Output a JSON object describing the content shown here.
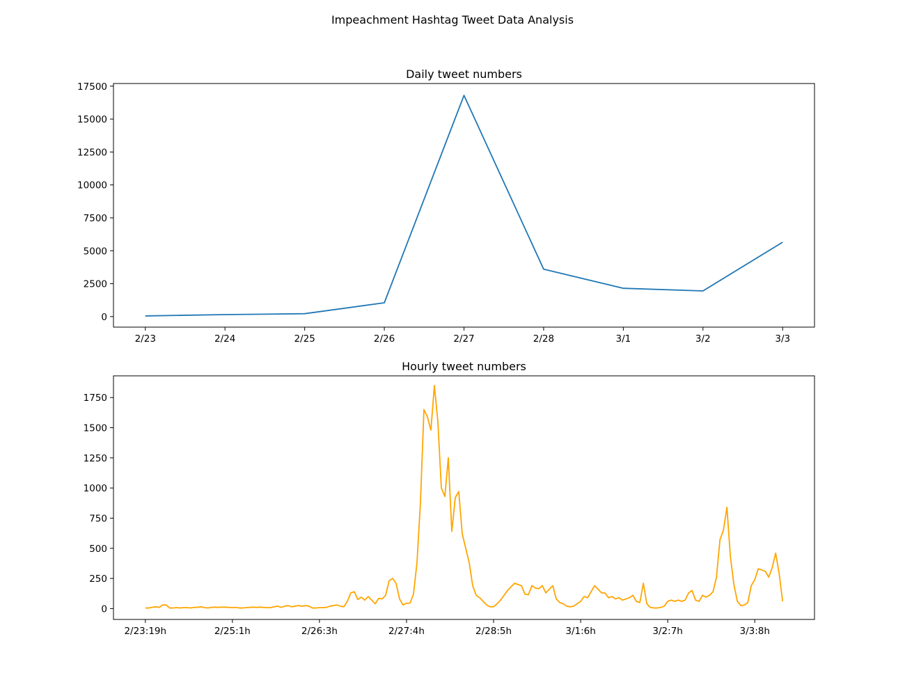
{
  "figure_title": "Impeachment Hashtag Tweet Data Analysis",
  "colors": {
    "daily": "#1f77b4",
    "hourly": "#ffa500"
  },
  "chart_data": [
    {
      "type": "line",
      "title": "Daily tweet numbers",
      "xlabel": "",
      "ylabel": "",
      "categories": [
        "2/23",
        "2/24",
        "2/25",
        "2/26",
        "2/27",
        "2/28",
        "3/1",
        "3/2",
        "3/3"
      ],
      "series": [
        {
          "values": [
            50,
            150,
            220,
            1050,
            16800,
            3600,
            2150,
            1950,
            5650
          ]
        }
      ],
      "ylim": [
        -800,
        17700
      ],
      "yticks": [
        0,
        2500,
        5000,
        7500,
        10000,
        12500,
        15000,
        17500
      ],
      "grid": false
    },
    {
      "type": "line",
      "title": "Hourly tweet numbers",
      "xlabel": "",
      "ylabel": "",
      "xtick_labels": [
        "2/23:19h",
        "2/25:1h",
        "2/26:3h",
        "2/27:4h",
        "2/28:5h",
        "3/1:6h",
        "3/2:7h",
        "3/3:8h"
      ],
      "xtick_index": [
        0,
        25,
        50,
        75,
        100,
        125,
        150,
        175
      ],
      "series": [
        {
          "values": [
            5,
            5,
            10,
            15,
            10,
            30,
            30,
            5,
            5,
            8,
            5,
            8,
            8,
            5,
            10,
            10,
            15,
            8,
            5,
            10,
            12,
            10,
            12,
            12,
            10,
            8,
            10,
            5,
            5,
            8,
            10,
            12,
            10,
            12,
            10,
            8,
            8,
            15,
            20,
            10,
            20,
            25,
            15,
            20,
            25,
            20,
            25,
            20,
            5,
            5,
            8,
            8,
            10,
            20,
            25,
            30,
            20,
            15,
            60,
            130,
            140,
            75,
            95,
            70,
            100,
            70,
            40,
            85,
            80,
            110,
            230,
            250,
            210,
            80,
            30,
            45,
            45,
            120,
            380,
            880,
            1650,
            1590,
            1480,
            1850,
            1550,
            1000,
            930,
            1250,
            640,
            920,
            970,
            620,
            500,
            380,
            190,
            110,
            90,
            60,
            30,
            15,
            15,
            40,
            70,
            110,
            150,
            180,
            210,
            200,
            190,
            120,
            115,
            190,
            170,
            165,
            190,
            130,
            160,
            190,
            80,
            50,
            40,
            20,
            15,
            20,
            40,
            60,
            100,
            90,
            140,
            190,
            160,
            130,
            130,
            90,
            100,
            80,
            90,
            70,
            80,
            90,
            110,
            60,
            50,
            210,
            40,
            10,
            5,
            5,
            10,
            20,
            60,
            70,
            60,
            70,
            60,
            70,
            130,
            150,
            70,
            60,
            110,
            95,
            110,
            140,
            260,
            570,
            650,
            840,
            430,
            200,
            60,
            25,
            30,
            50,
            190,
            240,
            330,
            320,
            310,
            260,
            340,
            460,
            290,
            60
          ]
        }
      ],
      "ylim": [
        -90,
        1930
      ],
      "yticks": [
        0,
        250,
        500,
        750,
        1000,
        1250,
        1500,
        1750
      ],
      "grid": false
    }
  ]
}
